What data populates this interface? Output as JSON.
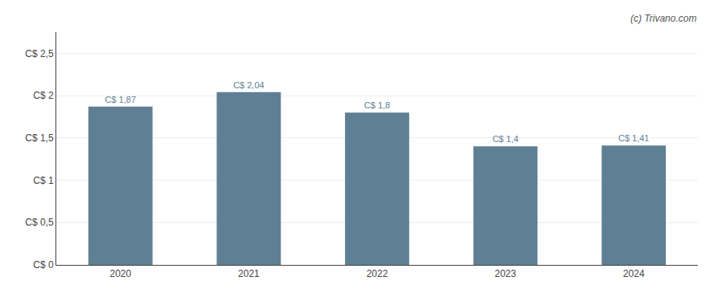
{
  "chart_data": {
    "type": "bar",
    "categories": [
      "2020",
      "2021",
      "2022",
      "2023",
      "2024"
    ],
    "values": [
      1.87,
      2.04,
      1.8,
      1.4,
      1.41
    ],
    "value_labels": [
      "C$ 1,87",
      "C$ 2,04",
      "C$ 1,8",
      "C$ 1,4",
      "C$ 1,41"
    ],
    "data_labels": true,
    "color": "#5f7f94",
    "ylim": [
      0,
      2.75
    ],
    "yticks": [
      {
        "value": 0,
        "label": "C$ 0"
      },
      {
        "value": 0.5,
        "label": "C$ 0,5"
      },
      {
        "value": 1.0,
        "label": "C$ 1"
      },
      {
        "value": 1.5,
        "label": "C$ 1,5"
      },
      {
        "value": 2.0,
        "label": "C$ 2"
      },
      {
        "value": 2.5,
        "label": "C$ 2,5"
      }
    ],
    "grid": true,
    "annotations": [
      "(c) Trivano.com"
    ]
  }
}
